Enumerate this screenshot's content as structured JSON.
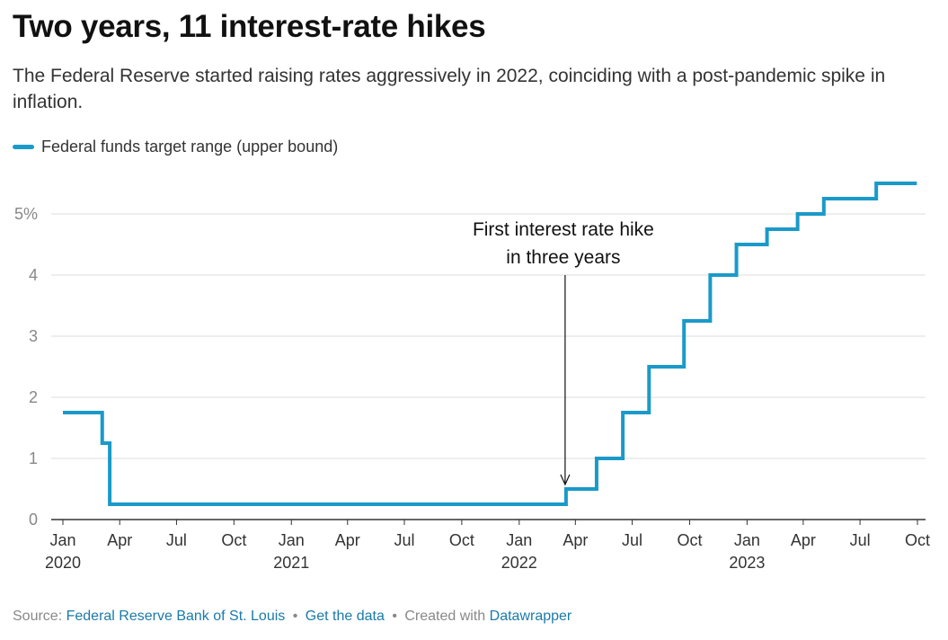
{
  "title": "Two years, 11 interest-rate hikes",
  "subtitle": "The Federal Reserve started raising rates aggressively in 2022, coinciding with a post-pandemic spike in inflation.",
  "legend_label": "Federal funds target range (upper bound)",
  "colors": {
    "series": "#1a9ac9",
    "grid": "#dddddd",
    "axis": "#333333",
    "tick_text": "#888888",
    "link": "#1a7aab"
  },
  "footer": {
    "source_prefix": "Source:",
    "source_link": "Federal Reserve Bank of St. Louis",
    "get_data": "Get the data",
    "created_with": "Created with",
    "datawrapper": "Datawrapper"
  },
  "chart_data": {
    "type": "line",
    "interpolation": "step-after",
    "x_domain": [
      "2020-01-01",
      "2023-10-01"
    ],
    "ylim": [
      0,
      5.5
    ],
    "y_ticks": [
      {
        "value": 0,
        "label": "0"
      },
      {
        "value": 1,
        "label": "1"
      },
      {
        "value": 2,
        "label": "2"
      },
      {
        "value": 3,
        "label": "3"
      },
      {
        "value": 4,
        "label": "4"
      },
      {
        "value": 5,
        "label": "5%"
      }
    ],
    "x_ticks": [
      {
        "date": "2020-01-01",
        "label": "Jan",
        "year": "2020"
      },
      {
        "date": "2020-04-01",
        "label": "Apr"
      },
      {
        "date": "2020-07-01",
        "label": "Jul"
      },
      {
        "date": "2020-10-01",
        "label": "Oct"
      },
      {
        "date": "2021-01-01",
        "label": "Jan",
        "year": "2021"
      },
      {
        "date": "2021-04-01",
        "label": "Apr"
      },
      {
        "date": "2021-07-01",
        "label": "Jul"
      },
      {
        "date": "2021-10-01",
        "label": "Oct"
      },
      {
        "date": "2022-01-01",
        "label": "Jan",
        "year": "2022"
      },
      {
        "date": "2022-04-01",
        "label": "Apr"
      },
      {
        "date": "2022-07-01",
        "label": "Jul"
      },
      {
        "date": "2022-10-01",
        "label": "Oct"
      },
      {
        "date": "2023-01-01",
        "label": "Jan",
        "year": "2023"
      },
      {
        "date": "2023-04-01",
        "label": "Apr"
      },
      {
        "date": "2023-07-01",
        "label": "Jul"
      },
      {
        "date": "2023-10-01",
        "label": "Oct"
      }
    ],
    "series": [
      {
        "name": "Federal funds target range (upper bound)",
        "points": [
          {
            "x": "2020-01-01",
            "y": 1.75
          },
          {
            "x": "2020-03-04",
            "y": 1.25
          },
          {
            "x": "2020-03-16",
            "y": 0.25
          },
          {
            "x": "2022-03-17",
            "y": 0.5
          },
          {
            "x": "2022-05-05",
            "y": 1.0
          },
          {
            "x": "2022-06-16",
            "y": 1.75
          },
          {
            "x": "2022-07-28",
            "y": 2.5
          },
          {
            "x": "2022-09-22",
            "y": 3.25
          },
          {
            "x": "2022-11-03",
            "y": 4.0
          },
          {
            "x": "2022-12-15",
            "y": 4.5
          },
          {
            "x": "2023-02-02",
            "y": 4.75
          },
          {
            "x": "2023-03-23",
            "y": 5.0
          },
          {
            "x": "2023-05-04",
            "y": 5.25
          },
          {
            "x": "2023-07-27",
            "y": 5.5
          },
          {
            "x": "2023-09-30",
            "y": 5.5
          }
        ]
      }
    ],
    "annotation": {
      "lines": [
        "First interest rate hike",
        "in three years"
      ],
      "x": "2022-03-17",
      "y": 0.5
    }
  }
}
